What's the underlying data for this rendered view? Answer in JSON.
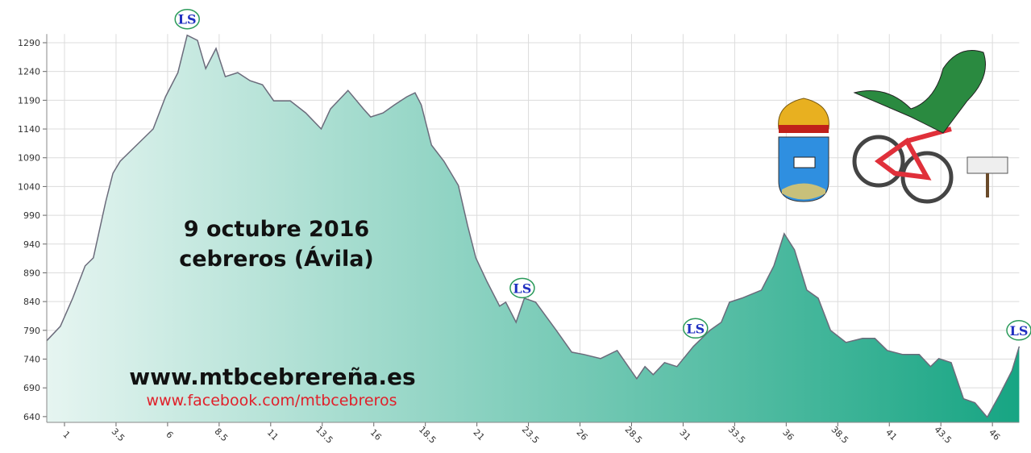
{
  "chart_data": {
    "type": "area",
    "texts": [
      "9 octubre 2016",
      "cebreros (Ávila)"
    ],
    "site": "www.mtbcebrereña.es",
    "facebook": "www.facebook.com/mtbcebreros",
    "x": [
      0.14,
      0.8,
      1.4,
      2.0,
      2.4,
      3.0,
      3.35,
      3.7,
      4.5,
      5.3,
      5.9,
      6.5,
      6.95,
      7.45,
      7.85,
      8.35,
      8.8,
      9.4,
      10.0,
      10.6,
      11.15,
      11.95,
      12.7,
      13.45,
      13.9,
      14.75,
      15.5,
      15.85,
      16.45,
      17.0,
      17.6,
      18.0,
      18.3,
      18.8,
      19.4,
      20.1,
      20.55,
      20.95,
      21.5,
      22.1,
      22.4,
      22.9,
      23.3,
      23.85,
      24.85,
      25.6,
      26.2,
      27.0,
      27.8,
      28.75,
      29.15,
      29.55,
      30.1,
      30.7,
      31.5,
      32.3,
      32.85,
      33.25,
      33.85,
      34.8,
      35.4,
      35.9,
      36.4,
      37.0,
      37.55,
      38.15,
      38.9,
      39.7,
      40.3,
      40.9,
      41.65,
      42.45,
      43.0,
      43.4,
      44.0,
      44.6,
      45.15,
      45.75,
      46.35,
      46.95,
      47.3
    ],
    "values": [
      772,
      797,
      846,
      902,
      916,
      1014,
      1063,
      1084,
      1112,
      1140,
      1196,
      1238,
      1303,
      1294,
      1245,
      1280,
      1231,
      1238,
      1224,
      1217,
      1189,
      1189,
      1168,
      1140,
      1175,
      1207,
      1175,
      1161,
      1168,
      1182,
      1196,
      1203,
      1182,
      1112,
      1084,
      1042,
      972,
      916,
      874,
      832,
      839,
      804,
      846,
      839,
      790,
      752,
      748,
      741,
      755,
      706,
      727,
      713,
      734,
      727,
      762,
      790,
      804,
      839,
      846,
      860,
      902,
      958,
      930,
      860,
      846,
      790,
      769,
      776,
      776,
      755,
      748,
      748,
      727,
      741,
      734,
      671,
      664,
      639,
      678,
      720,
      762
    ],
    "markers": [
      {
        "label": "LS",
        "x": 6.95
      },
      {
        "label": "LS",
        "x": 23.2
      },
      {
        "label": "LS",
        "x": 31.6
      },
      {
        "label": "LS",
        "x": 47.3
      }
    ],
    "xlim": [
      0.14,
      47.3
    ],
    "ylim": [
      630,
      1305
    ],
    "xticks": [
      1,
      3.5,
      6,
      8.5,
      11,
      13.5,
      16,
      18.5,
      21,
      23.5,
      26,
      28.5,
      31,
      33.5,
      36,
      38.5,
      41,
      43.5,
      46
    ],
    "yticks": [
      640,
      690,
      740,
      790,
      840,
      890,
      940,
      990,
      1040,
      1090,
      1140,
      1190,
      1240,
      1290
    ],
    "grid": true,
    "color": "#6b6b7b",
    "fill_colors": [
      "#e6f5f1",
      "#17a583"
    ]
  }
}
